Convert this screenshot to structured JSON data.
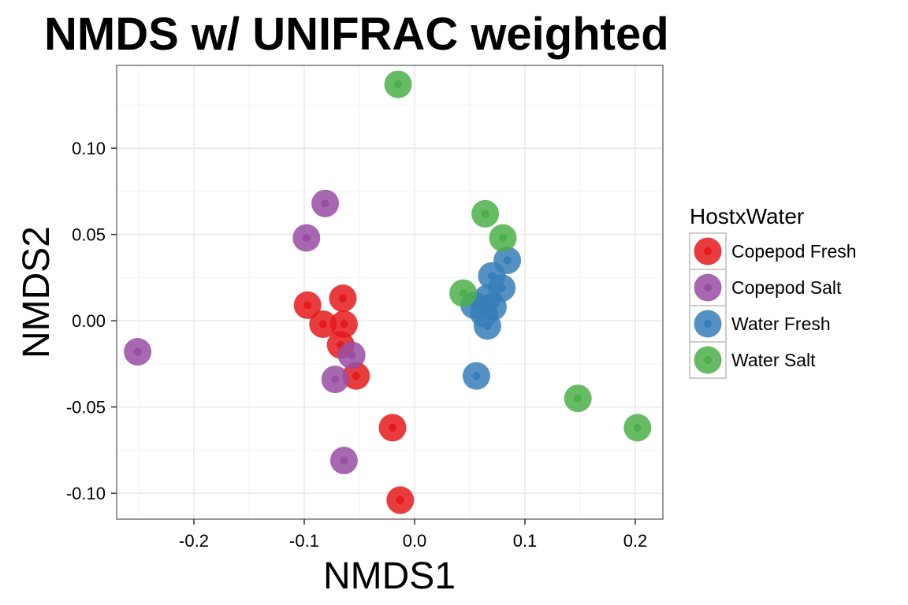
{
  "chart_data": {
    "type": "scatter",
    "title": "NMDS w/ UNIFRAC weighted",
    "xlabel": "NMDS1",
    "ylabel": "NMDS2",
    "xlim": [
      -0.27,
      0.225
    ],
    "ylim": [
      -0.115,
      0.148
    ],
    "x_ticks": [
      -0.2,
      -0.1,
      0.0,
      0.1,
      0.2
    ],
    "x_tick_labels": [
      "-0.2",
      "-0.1",
      "0.0",
      "0.1",
      "0.2"
    ],
    "y_ticks": [
      -0.1,
      -0.05,
      0.0,
      0.05,
      0.1
    ],
    "y_tick_labels": [
      "-0.10",
      "-0.05",
      "0.00",
      "0.05",
      "0.10"
    ],
    "grid": true,
    "legend": {
      "title": "HostxWater",
      "placement": "right"
    },
    "series": [
      {
        "name": "Copepod Fresh",
        "color": "#E41A1C",
        "points": [
          [
            -0.097,
            0.009
          ],
          [
            -0.083,
            -0.002
          ],
          [
            -0.065,
            0.013
          ],
          [
            -0.064,
            -0.002
          ],
          [
            -0.067,
            -0.014
          ],
          [
            -0.053,
            -0.032
          ],
          [
            -0.02,
            -0.062
          ],
          [
            -0.013,
            -0.104
          ]
        ]
      },
      {
        "name": "Copepod Salt",
        "color": "#984EA3",
        "points": [
          [
            -0.251,
            -0.018
          ],
          [
            -0.098,
            0.048
          ],
          [
            -0.081,
            0.068
          ],
          [
            -0.057,
            -0.02
          ],
          [
            -0.072,
            -0.034
          ],
          [
            -0.064,
            -0.081
          ]
        ]
      },
      {
        "name": "Water Fresh",
        "color": "#377EB8",
        "points": [
          [
            0.084,
            0.035
          ],
          [
            0.07,
            0.026
          ],
          [
            0.079,
            0.019
          ],
          [
            0.066,
            0.013
          ],
          [
            0.054,
            0.009
          ],
          [
            0.071,
            0.008
          ],
          [
            0.063,
            0.004
          ],
          [
            0.066,
            -0.003
          ],
          [
            0.056,
            -0.032
          ]
        ]
      },
      {
        "name": "Water Salt",
        "color": "#4DAF4A",
        "points": [
          [
            -0.015,
            0.137
          ],
          [
            0.064,
            0.062
          ],
          [
            0.08,
            0.048
          ],
          [
            0.044,
            0.016
          ],
          [
            0.148,
            -0.045
          ],
          [
            0.202,
            -0.062
          ]
        ]
      }
    ]
  }
}
